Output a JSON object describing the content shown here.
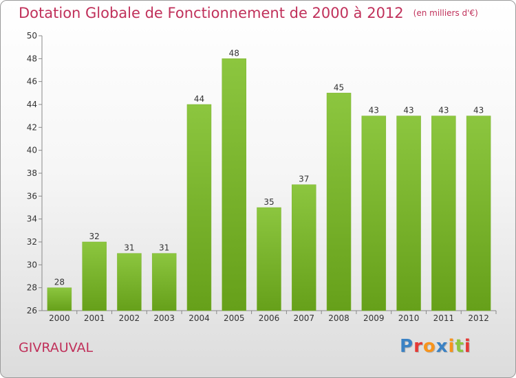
{
  "chart_data": {
    "type": "bar",
    "title": "Dotation Globale de Fonctionnement de 2000 à 2012",
    "unit": "(en milliers d'€)",
    "categories": [
      "2000",
      "2001",
      "2002",
      "2003",
      "2004",
      "2005",
      "2006",
      "2007",
      "2008",
      "2009",
      "2010",
      "2011",
      "2012"
    ],
    "values": [
      28,
      32,
      31,
      31,
      44,
      48,
      35,
      37,
      45,
      43,
      43,
      43,
      43
    ],
    "ylim": [
      26,
      50
    ],
    "yticks": [
      26,
      28,
      30,
      32,
      34,
      36,
      38,
      40,
      42,
      44,
      46,
      48,
      50
    ],
    "grid": false,
    "bar_color": "#8cc63f",
    "bar_dark": "#66a01a"
  },
  "footer": {
    "commune": "GIVRAUVAL",
    "logo_letters": [
      "P",
      "r",
      "o",
      "x",
      "i",
      "t",
      "i"
    ],
    "logo_colors": [
      "#3b82c4",
      "#e53935",
      "#f7941d",
      "#3b82c4",
      "#f7941d",
      "#8cc63f",
      "#e53935"
    ]
  },
  "colors": {
    "title": "#c0305a",
    "axis": "#888888"
  }
}
